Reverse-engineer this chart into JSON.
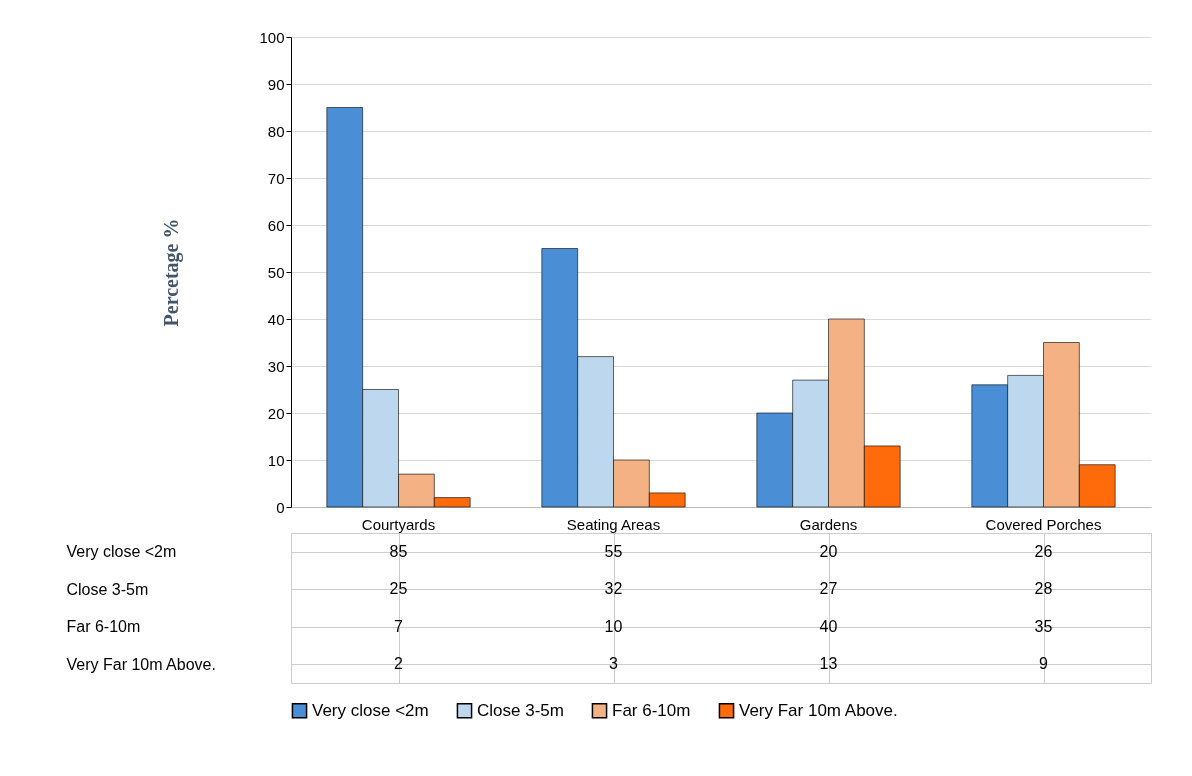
{
  "chart_data": {
    "type": "bar",
    "ylabel": "Percetage %",
    "categories": [
      "Courtyards",
      "Seating Areas",
      "Gardens",
      "Covered Porches"
    ],
    "series": [
      {
        "name": "Very close <2m",
        "color": "#4a8fd6",
        "values": [
          85,
          55,
          20,
          26
        ]
      },
      {
        "name": "Close 3-5m",
        "color": "#bdd7ee",
        "values": [
          25,
          32,
          27,
          28
        ]
      },
      {
        "name": "Far 6-10m",
        "color": "#f4b183",
        "values": [
          7,
          10,
          40,
          35
        ]
      },
      {
        "name": "Very Far 10m Above.",
        "color": "#ff6a0a",
        "values": [
          2,
          3,
          13,
          9
        ]
      }
    ],
    "ylim": [
      0,
      100
    ],
    "yticks": [
      0,
      10,
      20,
      30,
      40,
      50,
      60,
      70,
      80,
      90,
      100
    ],
    "grid": "y",
    "legend": "bottom",
    "data_labels": true
  }
}
